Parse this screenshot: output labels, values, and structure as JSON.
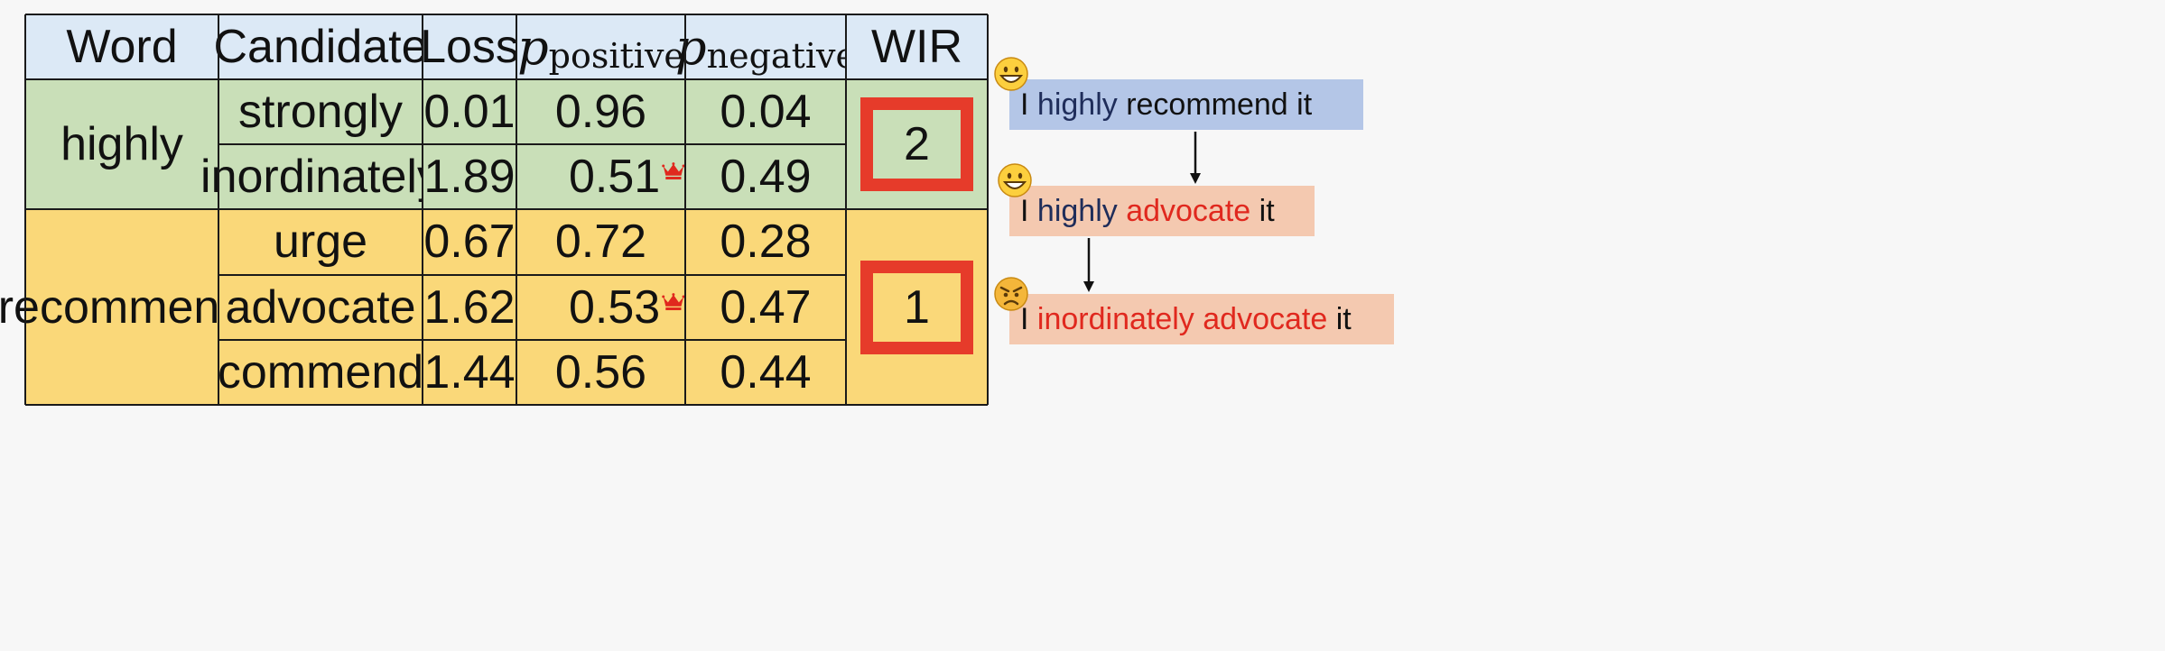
{
  "table": {
    "headers": {
      "word": "Word",
      "candidate": "Candidate",
      "loss": "Loss",
      "p_pos_var": "p",
      "p_pos_sub": "positive",
      "p_neg_var": "p",
      "p_neg_sub": "negative",
      "wir": "WIR"
    },
    "groups": [
      {
        "word": "highly",
        "wir": "2",
        "color": "#c9dfb8",
        "rows": [
          {
            "candidate": "strongly",
            "loss": "0.01",
            "p_positive": "0.96",
            "p_negative": "0.04",
            "crown": false
          },
          {
            "candidate": "inordinately",
            "loss": "1.89",
            "p_positive": "0.51",
            "p_negative": "0.49",
            "crown": true
          }
        ]
      },
      {
        "word": "recommend",
        "wir": "1",
        "color": "#fad879",
        "rows": [
          {
            "candidate": "urge",
            "loss": "0.67",
            "p_positive": "0.72",
            "p_negative": "0.28",
            "crown": false
          },
          {
            "candidate": "advocate",
            "loss": "1.62",
            "p_positive": "0.53",
            "p_negative": "0.47",
            "crown": true
          },
          {
            "candidate": "commend",
            "loss": "1.44",
            "p_positive": "0.56",
            "p_negative": "0.44",
            "crown": false
          }
        ]
      }
    ]
  },
  "flow": {
    "sentences": [
      {
        "bg": "#b4c6e7",
        "emoji": "grinning-face-icon",
        "parts": [
          {
            "text": "I ",
            "color": "#111111"
          },
          {
            "text": "highly",
            "color": "#1f2d5a"
          },
          {
            "text": " recommend it",
            "color": "#111111"
          }
        ]
      },
      {
        "bg": "#f4c9b0",
        "emoji": "grinning-face-icon",
        "parts": [
          {
            "text": "I ",
            "color": "#111111"
          },
          {
            "text": "highly",
            "color": "#1f2d5a"
          },
          {
            "text": " ",
            "color": "#111111"
          },
          {
            "text": "advocate",
            "color": "#e0281e"
          },
          {
            "text": " it",
            "color": "#111111"
          }
        ]
      },
      {
        "bg": "#f4c9b0",
        "emoji": "angry-face-icon",
        "parts": [
          {
            "text": "I ",
            "color": "#111111"
          },
          {
            "text": "inordinately",
            "color": "#e0281e"
          },
          {
            "text": " ",
            "color": "#111111"
          },
          {
            "text": "advocate",
            "color": "#e0281e"
          },
          {
            "text": " it",
            "color": "#111111"
          }
        ]
      }
    ]
  },
  "colors": {
    "header": "#dce9f6",
    "highlight_box": "#e63b2a",
    "crown": "#e0281e"
  }
}
